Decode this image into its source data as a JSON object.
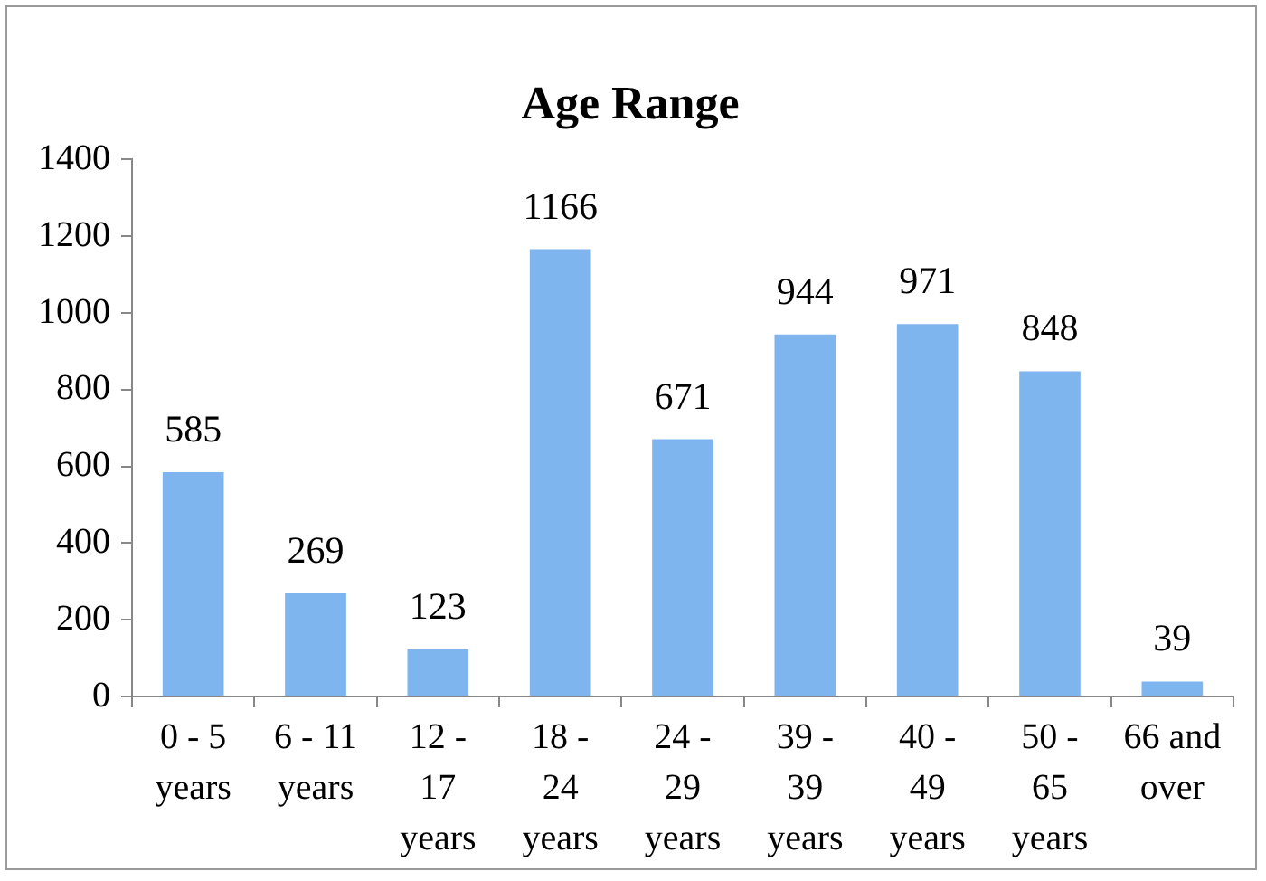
{
  "chart_data": {
    "type": "bar",
    "title": "Age Range",
    "categories": [
      "0 - 5 years",
      "6 - 11 years",
      "12 - 17 years",
      "18 - 24 years",
      "24 - 29 years",
      "39 - 39 years",
      "40 - 49 years",
      "50 - 65 years",
      "66 and over"
    ],
    "values": [
      585,
      269,
      123,
      1166,
      671,
      944,
      971,
      848,
      39
    ],
    "color": "#7fb5ee",
    "ylim": [
      0,
      1400
    ],
    "yticks": [
      0,
      200,
      400,
      600,
      800,
      1000,
      1200,
      1400
    ],
    "grid": false,
    "legend": false,
    "data_labels": true
  }
}
